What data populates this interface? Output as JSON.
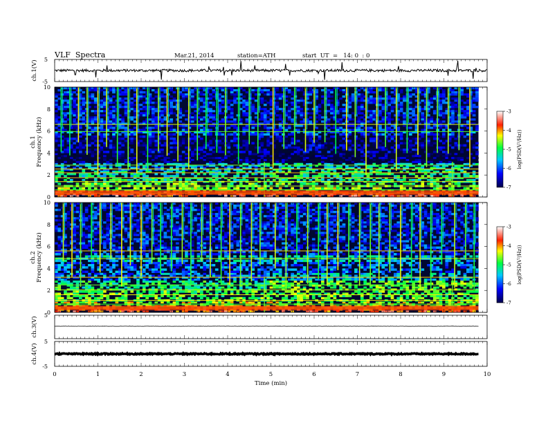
{
  "header": {
    "title": "VLF  Spectra",
    "date": "Mar.21, 2014",
    "station": "station=ATH",
    "start": "start  UT  =   14: 0  : 0"
  },
  "chart_data": [
    {
      "type": "line",
      "name": "ch1-waveform",
      "ylabel": "ch.1(V)",
      "ylim": [
        -5,
        5
      ],
      "yticks": [
        "5",
        "-5"
      ],
      "baseline": 0,
      "amplitude": 0.6,
      "xlim": [
        0,
        10
      ]
    },
    {
      "type": "heatmap",
      "name": "ch1-spectrogram",
      "ylabel": "ch.1\nFrequency  (kHz)",
      "ylim": [
        0,
        10
      ],
      "yticks": [
        "0",
        "2",
        "4",
        "6",
        "8",
        "10"
      ],
      "xlim": [
        0,
        9.8
      ],
      "colorbar": {
        "label": "log(PSD(V²/Hz))",
        "range": [
          -7,
          -3
        ],
        "ticks": [
          "-3",
          "-4",
          "-5",
          "-6",
          "-7"
        ]
      },
      "step_change_min": [
        4.85,
        9.2
      ],
      "spike_times_min": [
        0.15,
        0.35,
        0.55,
        0.75,
        1.0,
        1.2,
        1.45,
        1.7,
        1.9,
        2.15,
        2.4,
        2.6,
        2.85,
        3.1,
        3.3,
        3.5,
        3.75,
        3.95,
        4.25,
        4.5,
        4.7,
        5.05,
        5.3,
        5.55,
        5.8,
        6.0,
        6.25,
        6.5,
        6.75,
        6.95,
        7.2,
        7.45,
        7.65,
        7.9,
        8.15,
        8.4,
        8.6,
        8.85,
        9.1,
        9.35,
        9.6
      ]
    },
    {
      "type": "heatmap",
      "name": "ch2-spectrogram",
      "ylabel": "ch.2\nFrequency  (kHz)",
      "ylim": [
        0,
        10
      ],
      "yticks": [
        "0",
        "2",
        "4",
        "6",
        "8",
        "10"
      ],
      "xlim": [
        0,
        9.8
      ],
      "colorbar": {
        "label": "log(PSD(V²/Hz))",
        "range": [
          -7,
          -3
        ],
        "ticks": [
          "-3",
          "-4",
          "-5",
          "-6",
          "-7"
        ]
      },
      "step_change_min": [
        4.85,
        9.2
      ],
      "spike_times_min": [
        0.2,
        0.4,
        0.6,
        0.85,
        1.05,
        1.3,
        1.55,
        1.75,
        2.0,
        2.25,
        2.45,
        2.7,
        2.95,
        3.15,
        3.4,
        3.6,
        3.85,
        4.05,
        4.3,
        4.55,
        4.75,
        5.1,
        5.35,
        5.6,
        5.85,
        6.1,
        6.3,
        6.55,
        6.8,
        7.05,
        7.3,
        7.5,
        7.75,
        8.0,
        8.25,
        8.45,
        8.7,
        8.95,
        9.25,
        9.5,
        9.7
      ]
    },
    {
      "type": "line",
      "name": "ch3-waveform",
      "ylabel": "ch.3(V)",
      "ylim": [
        -5,
        5
      ],
      "yticks": [
        "5"
      ],
      "baseline": 0.3,
      "amplitude": 0.05,
      "xlim": [
        0,
        9.8
      ]
    },
    {
      "type": "line",
      "name": "ch4-waveform",
      "ylabel": "ch.4(V)",
      "ylim": [
        -5,
        5
      ],
      "yticks": [
        "5",
        "-5"
      ],
      "baseline": 0,
      "amplitude": 0.25,
      "xlim": [
        0,
        9.8
      ]
    }
  ],
  "xaxis": {
    "label": "Time  (min)",
    "ticks": [
      "0",
      "1",
      "2",
      "3",
      "4",
      "5",
      "6",
      "7",
      "8",
      "9",
      "10"
    ],
    "range": [
      0,
      10
    ]
  }
}
